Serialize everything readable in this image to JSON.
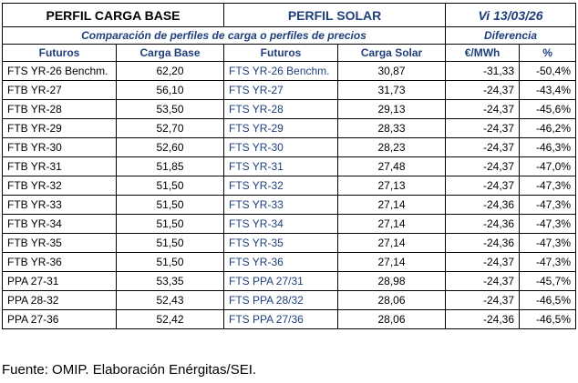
{
  "header": {
    "base_title": "PERFIL CARGA BASE",
    "solar_title": "PERFIL SOLAR",
    "date": "Vi 13/03/26",
    "subtitle": "Comparación de perfiles de carga o perfiles de precios",
    "diff_title": "Diferencia"
  },
  "columns": {
    "futuros_base": "Futuros",
    "carga_base": "Carga Base",
    "futuros_solar": "Futuros",
    "carga_solar": "Carga Solar",
    "eur_mwh": "€/MWh",
    "pct": "%"
  },
  "rows": [
    {
      "base": "FTS YR-26 Benchm.",
      "base_val": "62,20",
      "solar": "FTS YR-26 Benchm.",
      "solar_val": "30,87",
      "diff": "-31,33",
      "pct": "-50,4%"
    },
    {
      "base": "FTB YR-27",
      "base_val": "56,10",
      "solar": "FTS YR-27",
      "solar_val": "31,73",
      "diff": "-24,37",
      "pct": "-43,4%"
    },
    {
      "base": "FTB YR-28",
      "base_val": "53,50",
      "solar": "FTS YR-28",
      "solar_val": "29,13",
      "diff": "-24,37",
      "pct": "-45,6%"
    },
    {
      "base": "FTB YR-29",
      "base_val": "52,70",
      "solar": "FTS YR-29",
      "solar_val": "28,33",
      "diff": "-24,37",
      "pct": "-46,2%"
    },
    {
      "base": "FTB YR-30",
      "base_val": "52,60",
      "solar": "FTS YR-30",
      "solar_val": "28,23",
      "diff": "-24,37",
      "pct": "-46,3%"
    },
    {
      "base": "FTB YR-31",
      "base_val": "51,85",
      "solar": "FTS YR-31",
      "solar_val": "27,48",
      "diff": "-24,37",
      "pct": "-47,0%"
    },
    {
      "base": "FTB YR-32",
      "base_val": "51,50",
      "solar": "FTS YR-32",
      "solar_val": "27,13",
      "diff": "-24,37",
      "pct": "-47,3%"
    },
    {
      "base": "FTB YR-33",
      "base_val": "51,50",
      "solar": "FTS YR-33",
      "solar_val": "27,14",
      "diff": "-24,36",
      "pct": "-47,3%"
    },
    {
      "base": "FTB YR-34",
      "base_val": "51,50",
      "solar": "FTS YR-34",
      "solar_val": "27,14",
      "diff": "-24,36",
      "pct": "-47,3%"
    },
    {
      "base": "FTB YR-35",
      "base_val": "51,50",
      "solar": "FTS YR-35",
      "solar_val": "27,14",
      "diff": "-24,36",
      "pct": "-47,3%"
    },
    {
      "base": "FTB YR-36",
      "base_val": "51,50",
      "solar": "FTS YR-36",
      "solar_val": "27,14",
      "diff": "-24,37",
      "pct": "-47,3%"
    },
    {
      "base": "PPA 27-31",
      "base_val": "53,35",
      "solar": "FTS PPA 27/31",
      "solar_val": "28,98",
      "diff": "-24,37",
      "pct": "-45,7%"
    },
    {
      "base": "PPA 28-32",
      "base_val": "52,43",
      "solar": "FTS PPA 28/32",
      "solar_val": "28,06",
      "diff": "-24,37",
      "pct": "-46,5%"
    },
    {
      "base": "PPA 27-36",
      "base_val": "52,42",
      "solar": "FTS PPA 27/36",
      "solar_val": "28,06",
      "diff": "-24,36",
      "pct": "-46,5%"
    }
  ],
  "footer": {
    "source": "Fuente: OMIP. Elaboración Enérgitas/SEI."
  }
}
